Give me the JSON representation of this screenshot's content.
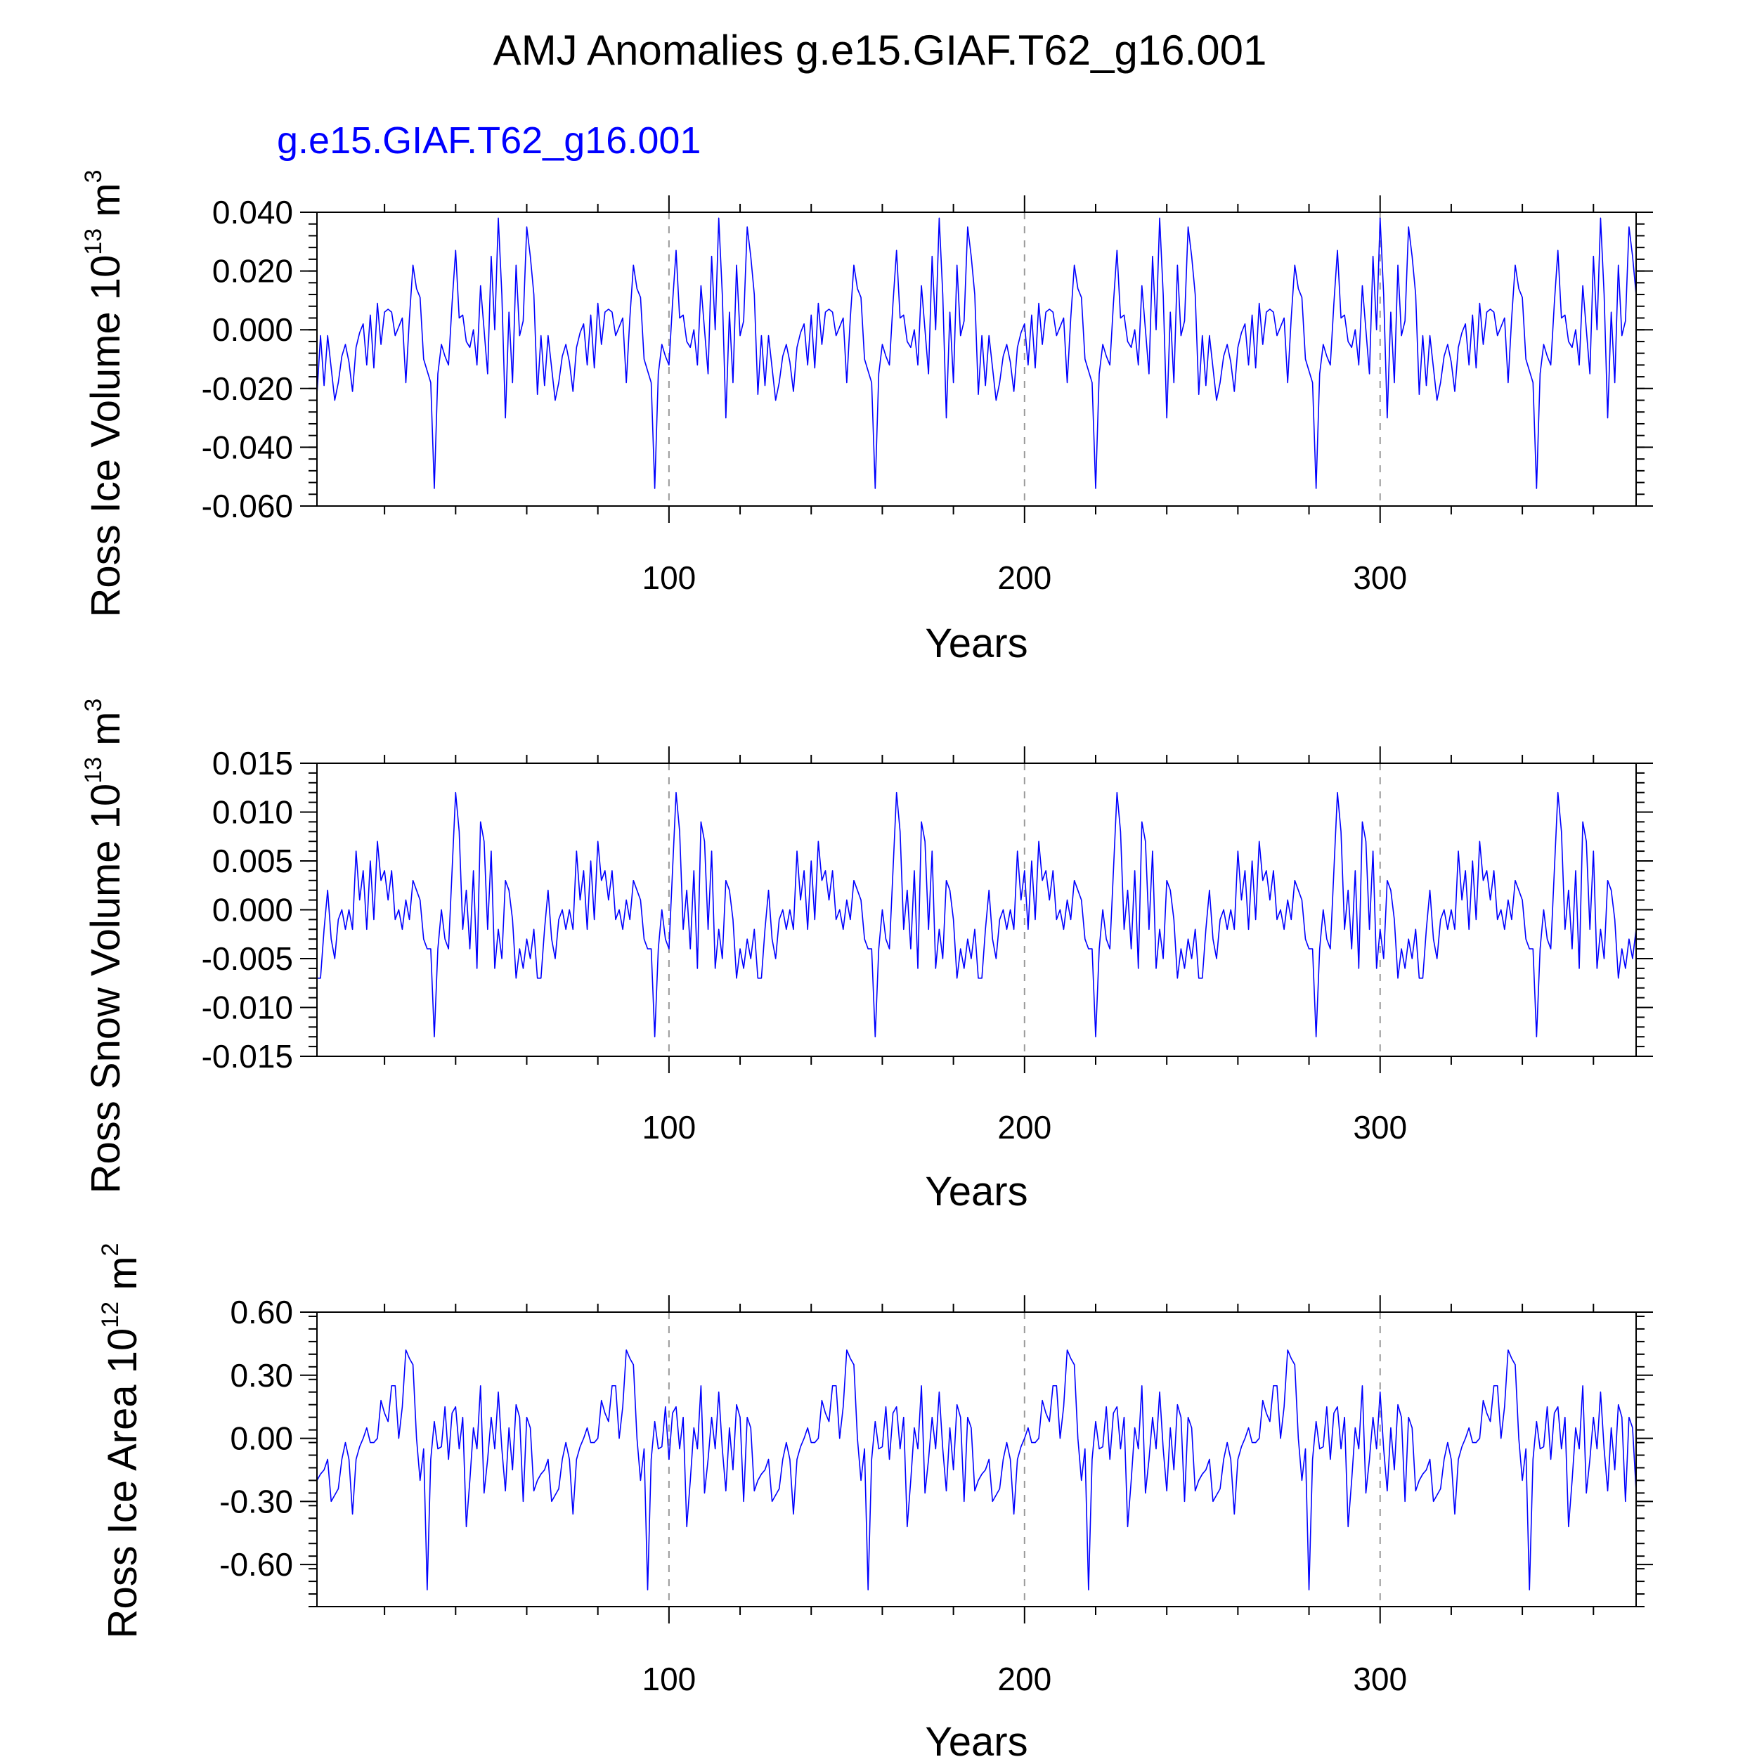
{
  "title": "AMJ Anomalies g.e15.GIAF.T62_g16.001",
  "subtitle": "g.e15.GIAF.T62_g16.001",
  "line_color": "#0000ff",
  "chart_data": [
    {
      "type": "line",
      "ylabel_main": "Ross Ice Volume 10",
      "ylabel_exp": "13",
      "ylabel_unit": " m",
      "ylabel_unit_exp": "3",
      "xlabel": "Years",
      "xlim": [
        1,
        372
      ],
      "ylim": [
        -0.06,
        0.04
      ],
      "xticks": [
        100,
        200,
        300
      ],
      "xtick_labels": [
        "100",
        "200",
        "300"
      ],
      "yticks": [
        0.04,
        0.02,
        0.0,
        -0.02,
        -0.04,
        -0.06
      ],
      "ytick_labels": [
        "0.040",
        "0.020",
        "0.000",
        "-0.020",
        "-0.040",
        "-0.060"
      ],
      "grid_x": [
        100,
        200,
        300
      ],
      "period": 62,
      "cycle": [
        -0.022,
        -0.002,
        -0.019,
        -0.002,
        -0.013,
        -0.024,
        -0.018,
        -0.009,
        -0.005,
        -0.011,
        -0.021,
        -0.006,
        -0.001,
        0.002,
        -0.012,
        0.005,
        -0.013,
        0.009,
        -0.005,
        0.006,
        0.007,
        0.006,
        -0.002,
        0.001,
        0.004,
        -0.018,
        0.004,
        0.022,
        0.014,
        0.011,
        -0.01,
        -0.014,
        -0.018,
        -0.054,
        -0.015,
        -0.005,
        -0.009,
        -0.012,
        0.009,
        0.027,
        0.004,
        0.005,
        -0.004,
        -0.006,
        0.0,
        -0.012,
        0.015,
        0.0,
        -0.015,
        0.025,
        0.0,
        0.038,
        0.012,
        -0.03,
        0.006,
        -0.018,
        0.022,
        -0.002,
        0.003,
        0.035,
        0.025,
        0.012
      ]
    },
    {
      "type": "line",
      "ylabel_main": "Ross Snow Volume 10",
      "ylabel_exp": "13",
      "ylabel_unit": " m",
      "ylabel_unit_exp": "3",
      "xlabel": "Years",
      "xlim": [
        1,
        372
      ],
      "ylim": [
        -0.015,
        0.015
      ],
      "xticks": [
        100,
        200,
        300
      ],
      "xtick_labels": [
        "100",
        "200",
        "300"
      ],
      "yticks": [
        0.015,
        0.01,
        0.005,
        0.0,
        -0.005,
        -0.01,
        -0.015
      ],
      "ytick_labels": [
        "0.015",
        "0.010",
        "0.005",
        "0.000",
        "-0.005",
        "-0.010",
        "-0.015"
      ],
      "grid_x": [
        100,
        200,
        300
      ],
      "period": 62,
      "cycle": [
        -0.007,
        -0.007,
        -0.002,
        0.002,
        -0.003,
        -0.005,
        -0.001,
        0.0,
        -0.002,
        0.0,
        -0.002,
        0.006,
        0.001,
        0.004,
        -0.002,
        0.005,
        -0.001,
        0.007,
        0.003,
        0.004,
        0.001,
        0.004,
        -0.001,
        0.0,
        -0.002,
        0.001,
        -0.001,
        0.003,
        0.002,
        0.001,
        -0.003,
        -0.004,
        -0.004,
        -0.013,
        -0.004,
        0.0,
        -0.003,
        -0.004,
        0.004,
        0.012,
        0.008,
        -0.002,
        0.002,
        -0.004,
        0.004,
        -0.006,
        0.009,
        0.007,
        -0.002,
        0.006,
        -0.006,
        -0.002,
        -0.005,
        0.003,
        0.002,
        -0.001,
        -0.007,
        -0.004,
        -0.006,
        -0.003,
        -0.005,
        -0.002
      ]
    },
    {
      "type": "line",
      "ylabel_main": "Ross Ice Area 10",
      "ylabel_exp": "12",
      "ylabel_unit": " m",
      "ylabel_unit_exp": "2",
      "xlabel": "Years",
      "xlim": [
        1,
        372
      ],
      "ylim": [
        -0.8,
        0.6
      ],
      "xticks": [
        100,
        200,
        300
      ],
      "xtick_labels": [
        "100",
        "200",
        "300"
      ],
      "yticks": [
        0.6,
        0.3,
        0.0,
        -0.3,
        -0.6
      ],
      "ytick_labels": [
        "0.60",
        "0.30",
        "0.00",
        "-0.30",
        "-0.60"
      ],
      "grid_x": [
        100,
        200,
        300
      ],
      "period": 62,
      "cycle": [
        -0.2,
        -0.17,
        -0.15,
        -0.1,
        -0.3,
        -0.27,
        -0.24,
        -0.1,
        -0.02,
        -0.1,
        -0.36,
        -0.1,
        -0.04,
        0.0,
        0.05,
        -0.02,
        -0.02,
        0.0,
        0.18,
        0.12,
        0.08,
        0.25,
        0.25,
        0.0,
        0.15,
        0.42,
        0.38,
        0.35,
        0.0,
        -0.2,
        -0.05,
        -0.72,
        -0.1,
        0.08,
        -0.05,
        -0.04,
        0.15,
        -0.1,
        0.12,
        0.15,
        -0.05,
        0.1,
        -0.42,
        -0.2,
        0.05,
        -0.05,
        0.25,
        -0.26,
        -0.1,
        0.1,
        -0.05,
        0.22,
        -0.05,
        -0.25,
        0.05,
        -0.15,
        0.16,
        0.1,
        -0.3,
        0.1,
        0.05,
        -0.25
      ]
    }
  ]
}
